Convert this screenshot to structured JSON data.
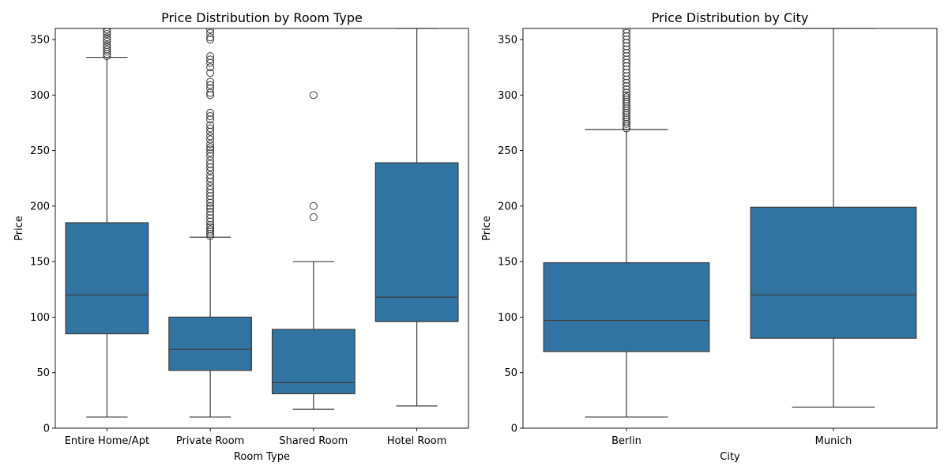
{
  "chart_data": [
    {
      "type": "box",
      "title": "Price Distribution by Room Type",
      "xlabel": "Room Type",
      "ylabel": "Price",
      "ylim": [
        0,
        360
      ],
      "yticks": [
        0,
        50,
        100,
        150,
        200,
        250,
        300,
        350
      ],
      "color": "#3274a1",
      "categories": [
        "Entire Home/Apt",
        "Private Room",
        "Shared Room",
        "Hotel Room"
      ],
      "boxes": [
        {
          "category": "Entire Home/Apt",
          "whisker_low": 10,
          "q1": 85,
          "median": 120,
          "q3": 185,
          "whisker_high": 334,
          "outliers": [
            335,
            337,
            339,
            341,
            343,
            345,
            348,
            350,
            352,
            355,
            357,
            359
          ]
        },
        {
          "category": "Private Room",
          "whisker_low": 10,
          "q1": 52,
          "median": 71,
          "q3": 100,
          "whisker_high": 172,
          "outliers": [
            173,
            175,
            177,
            179,
            181,
            183,
            186,
            189,
            192,
            195,
            198,
            200,
            203,
            206,
            209,
            212,
            215,
            218,
            222,
            225,
            228,
            232,
            235,
            238,
            241,
            245,
            248,
            251,
            253,
            256,
            260,
            263,
            267,
            270,
            273,
            278,
            281,
            284,
            300,
            302,
            306,
            309,
            312,
            320,
            325,
            329,
            332,
            335,
            350,
            352,
            356,
            359
          ]
        },
        {
          "category": "Shared Room",
          "whisker_low": 17,
          "q1": 31,
          "median": 41,
          "q3": 89,
          "whisker_high": 150,
          "outliers": [
            190,
            200,
            300
          ]
        },
        {
          "category": "Hotel Room",
          "whisker_low": 20,
          "q1": 96,
          "median": 118,
          "q3": 239,
          "whisker_high": 360,
          "outliers": []
        }
      ]
    },
    {
      "type": "box",
      "title": "Price Distribution by City",
      "xlabel": "City",
      "ylabel": "Price",
      "ylim": [
        0,
        360
      ],
      "yticks": [
        0,
        50,
        100,
        150,
        200,
        250,
        300,
        350
      ],
      "color": "#3274a1",
      "categories": [
        "Berlin",
        "Munich"
      ],
      "boxes": [
        {
          "category": "Berlin",
          "whisker_low": 10,
          "q1": 69,
          "median": 97,
          "q3": 149,
          "whisker_high": 269,
          "outliers": [
            270,
            272,
            274,
            276,
            278,
            280,
            282,
            284,
            286,
            288,
            290,
            292,
            294,
            296,
            298,
            300,
            302,
            305,
            308,
            311,
            314,
            317,
            320,
            323,
            326,
            329,
            332,
            335,
            338,
            341,
            344,
            347,
            350,
            353,
            356,
            359
          ]
        },
        {
          "category": "Munich",
          "whisker_low": 19,
          "q1": 81,
          "median": 120,
          "q3": 199,
          "whisker_high": 360,
          "outliers": []
        }
      ]
    }
  ]
}
